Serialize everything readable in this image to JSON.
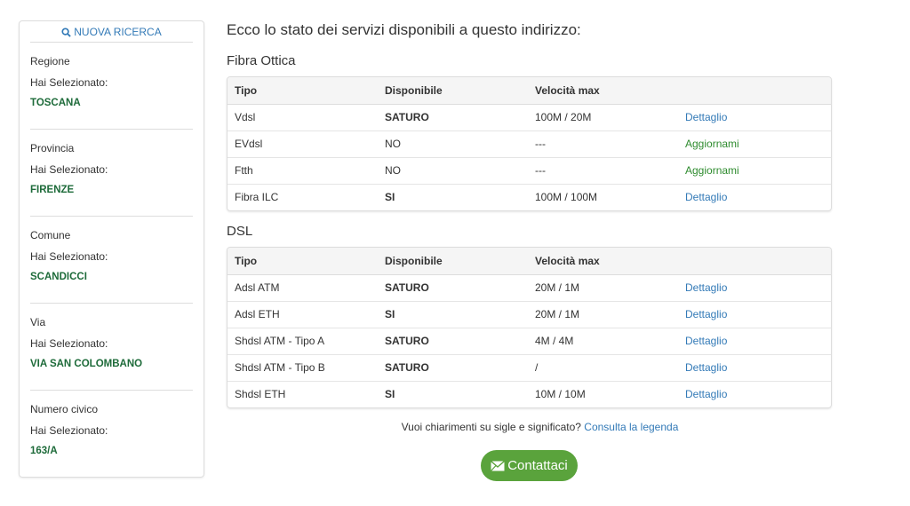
{
  "sidebar": {
    "new_search": "NUOVA RICERCA",
    "sections": [
      {
        "label": "Regione",
        "selected_label": "Hai Selezionato:",
        "value": "TOSCANA"
      },
      {
        "label": "Provincia",
        "selected_label": "Hai Selezionato:",
        "value": "FIRENZE"
      },
      {
        "label": "Comune",
        "selected_label": "Hai Selezionato:",
        "value": "SCANDICCI"
      },
      {
        "label": "Via",
        "selected_label": "Hai Selezionato:",
        "value": "VIA SAN COLOMBANO"
      },
      {
        "label": "Numero civico",
        "selected_label": "Hai Selezionato:",
        "value": "163/A"
      }
    ]
  },
  "main": {
    "title": "Ecco lo stato dei servizi disponibili a questo indirizzo:",
    "tables": [
      {
        "heading": "Fibra Ottica",
        "columns": [
          "Tipo",
          "Disponibile",
          "Velocità max"
        ],
        "rows": [
          {
            "tipo": "Vdsl",
            "disp": "SATURO",
            "vel": "100M / 20M",
            "action": "Dettaglio",
            "kind": "det"
          },
          {
            "tipo": "EVdsl",
            "disp": "NO",
            "vel": "---",
            "action": "Aggiornami",
            "kind": "agg"
          },
          {
            "tipo": "Ftth",
            "disp": "NO",
            "vel": "---",
            "action": "Aggiornami",
            "kind": "agg"
          },
          {
            "tipo": "Fibra ILC",
            "disp": "SI",
            "vel": "100M / 100M",
            "action": "Dettaglio",
            "kind": "det"
          }
        ]
      },
      {
        "heading": "DSL",
        "columns": [
          "Tipo",
          "Disponibile",
          "Velocità max"
        ],
        "rows": [
          {
            "tipo": "Adsl ATM",
            "disp": "SATURO",
            "vel": "20M / 1M",
            "action": "Dettaglio",
            "kind": "det"
          },
          {
            "tipo": "Adsl ETH",
            "disp": "SI",
            "vel": "20M / 1M",
            "action": "Dettaglio",
            "kind": "det"
          },
          {
            "tipo": "Shdsl ATM - Tipo A",
            "disp": "SATURO",
            "vel": "4M / 4M",
            "action": "Dettaglio",
            "kind": "det"
          },
          {
            "tipo": "Shdsl ATM - Tipo B",
            "disp": "SATURO",
            "vel": "/",
            "action": "Dettaglio",
            "kind": "det"
          },
          {
            "tipo": "Shdsl ETH",
            "disp": "SI",
            "vel": "10M / 10M",
            "action": "Dettaglio",
            "kind": "det"
          }
        ]
      }
    ],
    "help_text": "Vuoi chiarimenti su sigle e significato?",
    "help_link": "Consulta la legenda",
    "contact_label": "Contattaci"
  }
}
